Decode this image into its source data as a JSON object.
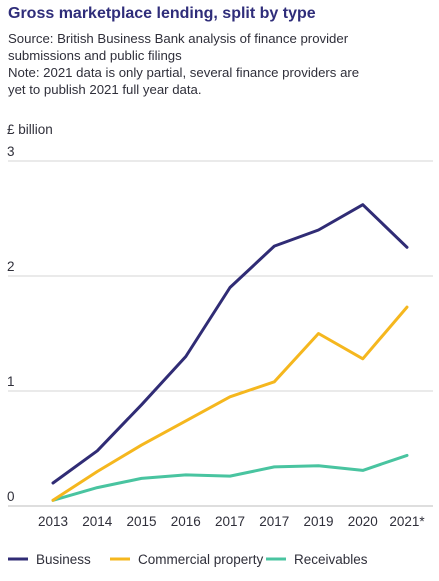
{
  "header": {
    "title": "Gross marketplace lending, split by type",
    "source_line1": "Source: British Business Bank analysis of finance provider",
    "source_line2": "submissions and public filings",
    "note_line1": "Note: 2021 data is only partial, several finance providers are",
    "note_line2": "yet to publish 2021 full year data."
  },
  "chart_data": {
    "type": "line",
    "title": "Gross marketplace lending, split by type",
    "ylabel": "£ billion",
    "xlabel": "",
    "x": [
      "2013",
      "2014",
      "2015",
      "2016",
      "2017",
      "2017",
      "2019",
      "2020",
      "2021*"
    ],
    "ylim": [
      0,
      3
    ],
    "yticks": [
      0,
      1,
      2,
      3
    ],
    "grid": "horizontal",
    "legend_position": "bottom",
    "series": [
      {
        "name": "Business",
        "color": "#302c75",
        "values": [
          0.2,
          0.48,
          0.88,
          1.3,
          1.9,
          2.26,
          2.4,
          2.62,
          2.25
        ]
      },
      {
        "name": "Commercial property",
        "color": "#f5b71e",
        "values": [
          0.05,
          0.3,
          0.53,
          0.74,
          0.95,
          1.08,
          1.5,
          1.28,
          1.73
        ]
      },
      {
        "name": "Receivables",
        "color": "#49c4a0",
        "values": [
          0.05,
          0.16,
          0.24,
          0.27,
          0.26,
          0.34,
          0.35,
          0.31,
          0.44
        ]
      }
    ]
  }
}
